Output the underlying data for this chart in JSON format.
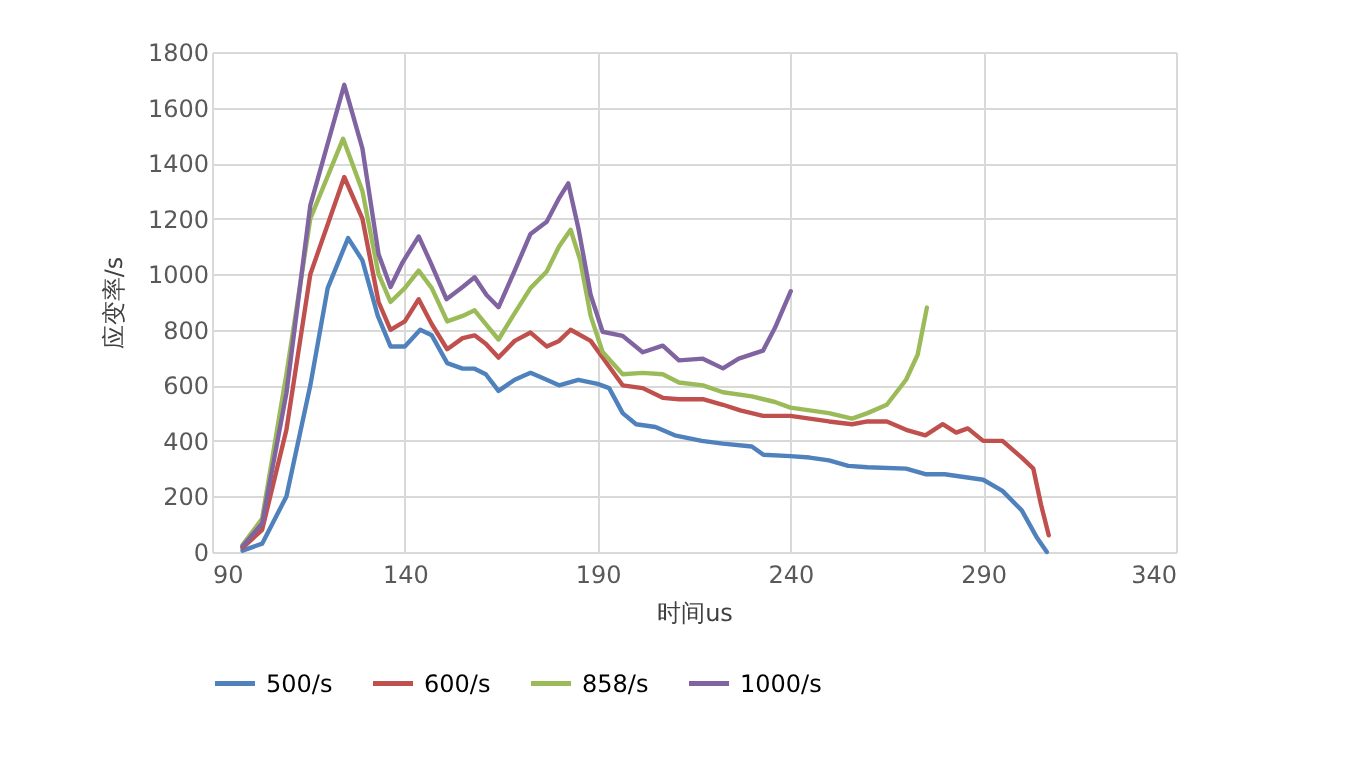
{
  "chart_data": {
    "type": "line",
    "xlabel": "时间us",
    "ylabel": "应变率/s",
    "xlim": [
      90,
      340
    ],
    "ylim": [
      0,
      1800
    ],
    "xticks": [
      90,
      140,
      190,
      240,
      290,
      340
    ],
    "yticks": [
      0,
      200,
      400,
      600,
      800,
      1000,
      1200,
      1400,
      1600,
      1800
    ],
    "grid": true,
    "legend": "bottom",
    "series": [
      {
        "name": "500/s",
        "color": "#4f81bd",
        "x": [
          97.9,
          103,
          109.3,
          115.5,
          120,
          125.3,
          129,
          133,
          136.3,
          140,
          144,
          147,
          151,
          155,
          158.1,
          161,
          164.3,
          168.5,
          172.6,
          176.8,
          180,
          185,
          190,
          193,
          196.5,
          200,
          205,
          210,
          217,
          222.5,
          230,
          233,
          240,
          245,
          250,
          255,
          260,
          270,
          275,
          280,
          285,
          290,
          295,
          300,
          304,
          306.5
        ],
        "values": [
          5,
          30,
          200,
          600,
          950,
          1130,
          1050,
          850,
          740,
          740,
          800,
          780,
          680,
          660,
          660,
          640,
          580,
          620,
          645,
          620,
          600,
          620,
          605,
          590,
          500,
          460,
          450,
          420,
          400,
          390,
          380,
          350,
          345,
          340,
          330,
          310,
          305,
          300,
          280,
          280,
          270,
          260,
          220,
          150,
          50,
          0
        ]
      },
      {
        "name": "600/s",
        "color": "#c0504d",
        "x": [
          97.9,
          103,
          109.3,
          115.5,
          124.3,
          129,
          133.2,
          136.3,
          140,
          143.6,
          147,
          151,
          155,
          158.1,
          161,
          164.3,
          168.5,
          172.6,
          176.8,
          180,
          183,
          188.2,
          191.3,
          196.5,
          201.7,
          206.9,
          211.1,
          217.3,
          222.5,
          227,
          232.9,
          240,
          245,
          250,
          256,
          260,
          265,
          270,
          275,
          279.5,
          283,
          286,
          290,
          295,
          300,
          303,
          305,
          307
        ],
        "values": [
          15,
          80,
          440,
          1000,
          1350,
          1200,
          900,
          800,
          830,
          910,
          820,
          730,
          770,
          780,
          750,
          700,
          760,
          790,
          740,
          760,
          800,
          760,
          700,
          600,
          590,
          555,
          550,
          550,
          530,
          510,
          490,
          490,
          480,
          470,
          460,
          470,
          470,
          440,
          420,
          460,
          430,
          445,
          400,
          400,
          340,
          300,
          170,
          60
        ]
      },
      {
        "name": "858/s",
        "color": "#9bbb59",
        "x": [
          97.9,
          103,
          109.3,
          115.5,
          124,
          129,
          133.2,
          136.3,
          140,
          143.6,
          147,
          151,
          155,
          158.1,
          161,
          164.3,
          168.5,
          172.6,
          176.8,
          180,
          183,
          185.5,
          188.2,
          191.3,
          196.5,
          201.7,
          206.9,
          211.1,
          217.3,
          222.5,
          230,
          236,
          240,
          245,
          250,
          256,
          260,
          265,
          270,
          273,
          275.4
        ],
        "values": [
          25,
          120,
          640,
          1200,
          1488,
          1300,
          1000,
          900,
          950,
          1013,
          950,
          830,
          850,
          870,
          820,
          765,
          860,
          950,
          1010,
          1100,
          1160,
          1050,
          850,
          720,
          640,
          645,
          640,
          610,
          600,
          575,
          560,
          540,
          520,
          510,
          500,
          480,
          500,
          530,
          620,
          710,
          880
        ]
      },
      {
        "name": "1000/s",
        "color": "#8064a2",
        "x": [
          97.9,
          103,
          109.3,
          115.5,
          124.3,
          129,
          133.2,
          136.3,
          139.4,
          143.6,
          146.7,
          150.8,
          155,
          158.1,
          161.2,
          164.3,
          168.5,
          172.6,
          176.8,
          179.9,
          182.4,
          185.1,
          188.2,
          191.3,
          196.5,
          201.7,
          206.9,
          211.1,
          217.3,
          222.5,
          226.6,
          232.9,
          236,
          240.1
        ],
        "values": [
          20,
          103,
          572,
          1248,
          1682,
          1453,
          1072,
          954,
          1042,
          1136,
          1042,
          910,
          954,
          989,
          925,
          881,
          1013,
          1145,
          1189,
          1271,
          1327,
          1160,
          925,
          793,
          778,
          719,
          743,
          690,
          696,
          661,
          696,
          725,
          807,
          939
        ]
      }
    ]
  }
}
